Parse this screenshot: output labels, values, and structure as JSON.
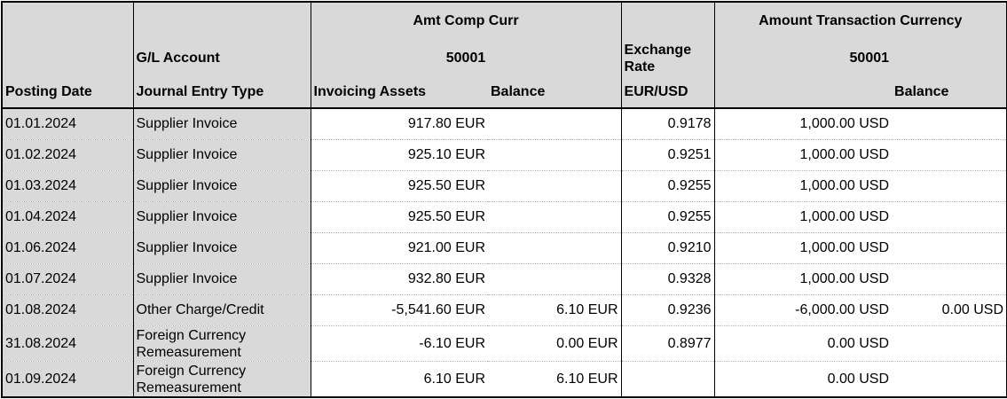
{
  "header": {
    "amt_comp_curr": "Amt Comp Curr",
    "amount_transaction_currency": "Amount Transaction Currency",
    "gl_account": "G/L Account",
    "account_comp": "50001",
    "exchange_rate": "Exchange Rate",
    "account_trans": "50001",
    "posting_date": "Posting Date",
    "journal_entry_type": "Journal Entry Type",
    "invoicing_assets": "Invoicing Assets",
    "balance_comp": "Balance",
    "eur_usd": "EUR/USD",
    "balance_trans": "Balance"
  },
  "rows": [
    {
      "date": "01.01.2024",
      "type": "Supplier Invoice",
      "invoicing": "917.80 EUR",
      "balance": "",
      "rate": "0.9178",
      "amount": "1,000.00 USD",
      "bal_usd": ""
    },
    {
      "date": "01.02.2024",
      "type": "Supplier Invoice",
      "invoicing": "925.10 EUR",
      "balance": "",
      "rate": "0.9251",
      "amount": "1,000.00 USD",
      "bal_usd": ""
    },
    {
      "date": "01.03.2024",
      "type": "Supplier Invoice",
      "invoicing": "925.50 EUR",
      "balance": "",
      "rate": "0.9255",
      "amount": "1,000.00 USD",
      "bal_usd": ""
    },
    {
      "date": "01.04.2024",
      "type": "Supplier Invoice",
      "invoicing": "925.50 EUR",
      "balance": "",
      "rate": "0.9255",
      "amount": "1,000.00 USD",
      "bal_usd": ""
    },
    {
      "date": "01.06.2024",
      "type": "Supplier Invoice",
      "invoicing": "921.00 EUR",
      "balance": "",
      "rate": "0.9210",
      "amount": "1,000.00 USD",
      "bal_usd": ""
    },
    {
      "date": "01.07.2024",
      "type": "Supplier Invoice",
      "invoicing": "932.80 EUR",
      "balance": "",
      "rate": "0.9328",
      "amount": "1,000.00 USD",
      "bal_usd": ""
    },
    {
      "date": "01.08.2024",
      "type": "Other Charge/Credit",
      "invoicing": "-5,541.60 EUR",
      "balance": "6.10 EUR",
      "rate": "0.9236",
      "amount": "-6,000.00 USD",
      "bal_usd": "0.00 USD"
    },
    {
      "date": "31.08.2024",
      "type": "Foreign Currency Remeasurement",
      "invoicing": "-6.10 EUR",
      "balance": "0.00 EUR",
      "rate": "0.8977",
      "amount": "0.00 USD",
      "bal_usd": ""
    },
    {
      "date": "01.09.2024",
      "type": "Foreign Currency Remeasurement",
      "invoicing": "6.10 EUR",
      "balance": "6.10 EUR",
      "rate": "",
      "amount": "0.00 USD",
      "bal_usd": ""
    }
  ]
}
